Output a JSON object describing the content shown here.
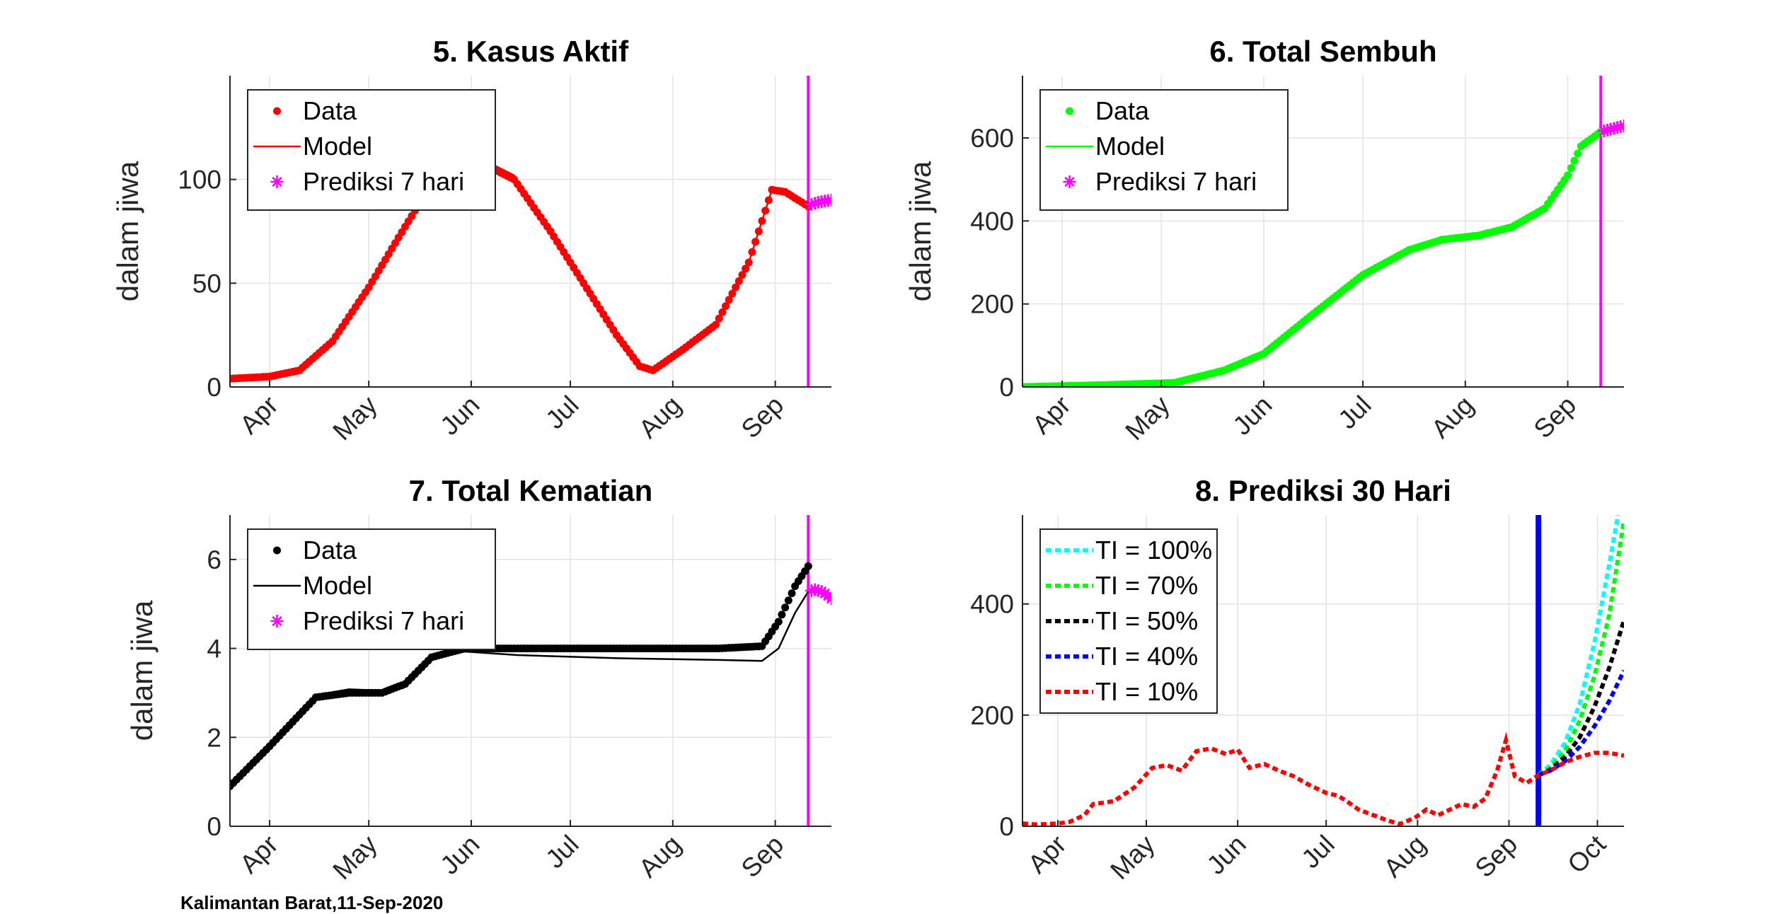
{
  "footer": "Kalimantan Barat,11-Sep-2020",
  "colors": {
    "red": "#ff0000",
    "green": "#00ff00",
    "black": "#000000",
    "magenta": "#ff00ff",
    "cyan": "#00ffff",
    "blue": "#0000ff"
  },
  "chart_data": [
    {
      "type": "line",
      "title": "5. Kasus Aktif",
      "ylabel": "dalam jiwa",
      "x_range": [
        "2020-03-20",
        "2020-09-18"
      ],
      "xtick_dates": [
        "2020-04-01",
        "2020-05-01",
        "2020-06-01",
        "2020-07-01",
        "2020-08-01",
        "2020-09-01"
      ],
      "xtick_labels": [
        "Apr",
        "May",
        "Jun",
        "Jul",
        "Aug",
        "Sep"
      ],
      "ylim": [
        0,
        150
      ],
      "yticks": [
        0,
        50,
        100
      ],
      "grid": true,
      "legend_position": "top-left",
      "vline_date": "2020-09-11",
      "vline_color": "magenta",
      "series": [
        {
          "name": "Data",
          "style": "dots",
          "color": "red",
          "points": [
            [
              "2020-03-20",
              4
            ],
            [
              "2020-04-01",
              5
            ],
            [
              "2020-04-10",
              8
            ],
            [
              "2020-04-20",
              22
            ],
            [
              "2020-05-01",
              48
            ],
            [
              "2020-05-10",
              72
            ],
            [
              "2020-05-20",
              98
            ],
            [
              "2020-05-28",
              110
            ],
            [
              "2020-06-04",
              108
            ],
            [
              "2020-06-14",
              100
            ],
            [
              "2020-06-25",
              75
            ],
            [
              "2020-07-05",
              50
            ],
            [
              "2020-07-15",
              25
            ],
            [
              "2020-07-22",
              10
            ],
            [
              "2020-07-26",
              8
            ],
            [
              "2020-08-04",
              18
            ],
            [
              "2020-08-14",
              30
            ],
            [
              "2020-08-24",
              60
            ],
            [
              "2020-08-31",
              95
            ],
            [
              "2020-09-04",
              94
            ],
            [
              "2020-09-11",
              87
            ]
          ]
        },
        {
          "name": "Model",
          "style": "line",
          "color": "red",
          "points": [
            [
              "2020-03-20",
              4
            ],
            [
              "2020-04-01",
              5
            ],
            [
              "2020-04-10",
              8
            ],
            [
              "2020-04-20",
              22
            ],
            [
              "2020-05-01",
              48
            ],
            [
              "2020-05-10",
              72
            ],
            [
              "2020-05-20",
              98
            ],
            [
              "2020-05-28",
              112
            ],
            [
              "2020-06-04",
              110
            ],
            [
              "2020-06-14",
              102
            ],
            [
              "2020-06-25",
              75
            ],
            [
              "2020-07-05",
              50
            ],
            [
              "2020-07-15",
              25
            ],
            [
              "2020-07-22",
              10
            ],
            [
              "2020-07-26",
              8
            ],
            [
              "2020-08-04",
              18
            ],
            [
              "2020-08-14",
              30
            ],
            [
              "2020-08-24",
              60
            ],
            [
              "2020-08-31",
              95
            ],
            [
              "2020-09-04",
              94
            ],
            [
              "2020-09-11",
              88
            ]
          ]
        },
        {
          "name": "Prediksi 7 hari",
          "style": "stars",
          "color": "magenta",
          "points": [
            [
              "2020-09-12",
              88
            ],
            [
              "2020-09-13",
              88.5
            ],
            [
              "2020-09-14",
              89
            ],
            [
              "2020-09-15",
              89.3
            ],
            [
              "2020-09-16",
              89.6
            ],
            [
              "2020-09-17",
              89.8
            ],
            [
              "2020-09-18",
              90
            ]
          ]
        }
      ]
    },
    {
      "type": "line",
      "title": "6. Total Sembuh",
      "ylabel": "dalam jiwa",
      "x_range": [
        "2020-03-20",
        "2020-09-18"
      ],
      "xtick_dates": [
        "2020-04-01",
        "2020-05-01",
        "2020-06-01",
        "2020-07-01",
        "2020-08-01",
        "2020-09-01"
      ],
      "xtick_labels": [
        "Apr",
        "May",
        "Jun",
        "Jul",
        "Aug",
        "Sep"
      ],
      "ylim": [
        0,
        750
      ],
      "yticks": [
        0,
        200,
        400,
        600
      ],
      "grid": true,
      "legend_position": "top-left",
      "vline_date": "2020-09-11",
      "vline_color": "magenta",
      "series": [
        {
          "name": "Data",
          "style": "dots",
          "color": "green",
          "points": [
            [
              "2020-03-20",
              0
            ],
            [
              "2020-04-15",
              5
            ],
            [
              "2020-05-05",
              10
            ],
            [
              "2020-05-20",
              40
            ],
            [
              "2020-06-01",
              80
            ],
            [
              "2020-06-15",
              170
            ],
            [
              "2020-07-01",
              270
            ],
            [
              "2020-07-15",
              330
            ],
            [
              "2020-07-25",
              355
            ],
            [
              "2020-08-05",
              365
            ],
            [
              "2020-08-15",
              385
            ],
            [
              "2020-08-25",
              430
            ],
            [
              "2020-09-01",
              510
            ],
            [
              "2020-09-05",
              580
            ],
            [
              "2020-09-11",
              615
            ]
          ]
        },
        {
          "name": "Model",
          "style": "line",
          "color": "green",
          "points": [
            [
              "2020-03-20",
              0
            ],
            [
              "2020-04-15",
              5
            ],
            [
              "2020-05-05",
              10
            ],
            [
              "2020-05-20",
              40
            ],
            [
              "2020-06-01",
              80
            ],
            [
              "2020-06-15",
              170
            ],
            [
              "2020-07-01",
              270
            ],
            [
              "2020-07-15",
              330
            ],
            [
              "2020-07-25",
              355
            ],
            [
              "2020-08-05",
              365
            ],
            [
              "2020-08-15",
              385
            ],
            [
              "2020-08-25",
              430
            ],
            [
              "2020-09-01",
              510
            ],
            [
              "2020-09-05",
              580
            ],
            [
              "2020-09-11",
              615
            ]
          ]
        },
        {
          "name": "Prediksi 7 hari",
          "style": "stars",
          "color": "magenta",
          "points": [
            [
              "2020-09-12",
              617
            ],
            [
              "2020-09-13",
              619
            ],
            [
              "2020-09-14",
              621
            ],
            [
              "2020-09-15",
              623
            ],
            [
              "2020-09-16",
              625
            ],
            [
              "2020-09-17",
              627
            ],
            [
              "2020-09-18",
              629
            ]
          ]
        }
      ]
    },
    {
      "type": "line",
      "title": "7. Total Kematian",
      "ylabel": "dalam jiwa",
      "x_range": [
        "2020-03-20",
        "2020-09-18"
      ],
      "xtick_dates": [
        "2020-04-01",
        "2020-05-01",
        "2020-06-01",
        "2020-07-01",
        "2020-08-01",
        "2020-09-01"
      ],
      "xtick_labels": [
        "Apr",
        "May",
        "Jun",
        "Jul",
        "Aug",
        "Sep"
      ],
      "ylim": [
        0,
        7
      ],
      "yticks": [
        0,
        2,
        4,
        6
      ],
      "grid": true,
      "legend_position": "top-left",
      "vline_date": "2020-09-11",
      "vline_color": "magenta",
      "series": [
        {
          "name": "Data",
          "style": "dots",
          "color": "black",
          "points": [
            [
              "2020-03-20",
              0.9
            ],
            [
              "2020-04-01",
              1.8
            ],
            [
              "2020-04-15",
              2.9
            ],
            [
              "2020-04-25",
              3.0
            ],
            [
              "2020-05-05",
              3.0
            ],
            [
              "2020-05-12",
              3.2
            ],
            [
              "2020-05-20",
              3.8
            ],
            [
              "2020-05-30",
              4.0
            ],
            [
              "2020-06-15",
              4.0
            ],
            [
              "2020-07-15",
              4.0
            ],
            [
              "2020-08-15",
              4.0
            ],
            [
              "2020-08-28",
              4.05
            ],
            [
              "2020-09-02",
              4.6
            ],
            [
              "2020-09-07",
              5.4
            ],
            [
              "2020-09-11",
              5.85
            ]
          ]
        },
        {
          "name": "Model",
          "style": "line",
          "color": "black",
          "points": [
            [
              "2020-03-20",
              0.9
            ],
            [
              "2020-04-01",
              1.8
            ],
            [
              "2020-04-15",
              2.95
            ],
            [
              "2020-04-25",
              3.08
            ],
            [
              "2020-05-05",
              3.05
            ],
            [
              "2020-05-12",
              3.2
            ],
            [
              "2020-05-20",
              3.75
            ],
            [
              "2020-05-30",
              3.93
            ],
            [
              "2020-06-15",
              3.85
            ],
            [
              "2020-07-15",
              3.78
            ],
            [
              "2020-08-15",
              3.74
            ],
            [
              "2020-08-28",
              3.72
            ],
            [
              "2020-09-02",
              4.0
            ],
            [
              "2020-09-07",
              4.8
            ],
            [
              "2020-09-11",
              5.28
            ]
          ]
        },
        {
          "name": "Prediksi 7 hari",
          "style": "stars",
          "color": "magenta",
          "points": [
            [
              "2020-09-12",
              5.3
            ],
            [
              "2020-09-13",
              5.32
            ],
            [
              "2020-09-14",
              5.3
            ],
            [
              "2020-09-15",
              5.28
            ],
            [
              "2020-09-16",
              5.24
            ],
            [
              "2020-09-17",
              5.18
            ],
            [
              "2020-09-18",
              5.12
            ]
          ]
        }
      ]
    },
    {
      "type": "line",
      "title": "8. Prediksi 30 Hari",
      "ylabel": "",
      "x_range": [
        "2020-03-20",
        "2020-10-10"
      ],
      "xtick_dates": [
        "2020-04-01",
        "2020-05-01",
        "2020-06-01",
        "2020-07-01",
        "2020-08-01",
        "2020-09-01",
        "2020-10-01"
      ],
      "xtick_labels": [
        "Apr",
        "May",
        "Jun",
        "Jul",
        "Aug",
        "Sep",
        "Oct"
      ],
      "ylim": [
        0,
        560
      ],
      "yticks": [
        0,
        200,
        400
      ],
      "grid": true,
      "legend_position": "top-left",
      "vline_date": "2020-09-11",
      "vline_color": "blue",
      "series": [
        {
          "name": "TI = 100%",
          "style": "dashed",
          "color": "cyan",
          "points": [
            [
              "2020-09-11",
              92
            ],
            [
              "2020-09-15",
              110
            ],
            [
              "2020-09-20",
              150
            ],
            [
              "2020-09-25",
              220
            ],
            [
              "2020-09-30",
              330
            ],
            [
              "2020-10-05",
              470
            ],
            [
              "2020-10-08",
              560
            ]
          ]
        },
        {
          "name": "TI = 70%",
          "style": "dashed",
          "color": "green",
          "points": [
            [
              "2020-09-11",
              92
            ],
            [
              "2020-09-15",
              105
            ],
            [
              "2020-09-20",
              135
            ],
            [
              "2020-09-25",
              190
            ],
            [
              "2020-09-30",
              270
            ],
            [
              "2020-10-05",
              380
            ],
            [
              "2020-10-10",
              550
            ]
          ]
        },
        {
          "name": "TI = 50%",
          "style": "dashed",
          "color": "black",
          "points": [
            [
              "2020-09-11",
              92
            ],
            [
              "2020-09-15",
              102
            ],
            [
              "2020-09-20",
              125
            ],
            [
              "2020-09-25",
              160
            ],
            [
              "2020-09-30",
              215
            ],
            [
              "2020-10-05",
              285
            ],
            [
              "2020-10-10",
              370
            ]
          ]
        },
        {
          "name": "TI = 40%",
          "style": "dashed",
          "color": "blue",
          "points": [
            [
              "2020-09-11",
              92
            ],
            [
              "2020-09-15",
              100
            ],
            [
              "2020-09-20",
              117
            ],
            [
              "2020-09-25",
              143
            ],
            [
              "2020-09-30",
              180
            ],
            [
              "2020-10-05",
              225
            ],
            [
              "2020-10-10",
              280
            ]
          ]
        },
        {
          "name": "TI = 10%",
          "style": "dashed",
          "color": "red",
          "points": [
            [
              "2020-03-20",
              5
            ],
            [
              "2020-03-25",
              3
            ],
            [
              "2020-04-01",
              5
            ],
            [
              "2020-04-05",
              8
            ],
            [
              "2020-04-10",
              20
            ],
            [
              "2020-04-13",
              40
            ],
            [
              "2020-04-20",
              45
            ],
            [
              "2020-04-27",
              70
            ],
            [
              "2020-05-03",
              105
            ],
            [
              "2020-05-08",
              110
            ],
            [
              "2020-05-13",
              100
            ],
            [
              "2020-05-18",
              135
            ],
            [
              "2020-05-23",
              140
            ],
            [
              "2020-05-28",
              130
            ],
            [
              "2020-06-01",
              138
            ],
            [
              "2020-06-05",
              105
            ],
            [
              "2020-06-10",
              112
            ],
            [
              "2020-06-15",
              100
            ],
            [
              "2020-06-20",
              90
            ],
            [
              "2020-06-25",
              75
            ],
            [
              "2020-07-01",
              60
            ],
            [
              "2020-07-05",
              55
            ],
            [
              "2020-07-08",
              45
            ],
            [
              "2020-07-12",
              30
            ],
            [
              "2020-07-17",
              20
            ],
            [
              "2020-07-22",
              10
            ],
            [
              "2020-07-26",
              4
            ],
            [
              "2020-07-31",
              15
            ],
            [
              "2020-08-04",
              30
            ],
            [
              "2020-08-08",
              20
            ],
            [
              "2020-08-12",
              30
            ],
            [
              "2020-08-16",
              40
            ],
            [
              "2020-08-20",
              35
            ],
            [
              "2020-08-24",
              50
            ],
            [
              "2020-08-28",
              100
            ],
            [
              "2020-08-31",
              155
            ],
            [
              "2020-09-03",
              90
            ],
            [
              "2020-09-07",
              78
            ],
            [
              "2020-09-11",
              92
            ],
            [
              "2020-09-15",
              100
            ],
            [
              "2020-09-20",
              115
            ],
            [
              "2020-09-25",
              125
            ],
            [
              "2020-09-30",
              132
            ],
            [
              "2020-10-05",
              132
            ],
            [
              "2020-10-10",
              127
            ]
          ]
        }
      ]
    }
  ]
}
